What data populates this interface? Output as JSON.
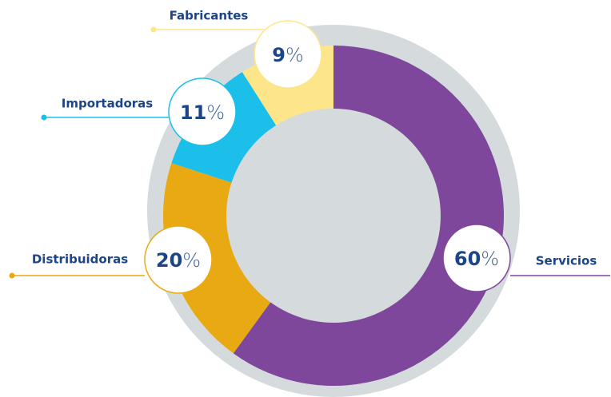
{
  "chart_data": {
    "type": "pie",
    "categories": [
      "Servicios",
      "Distribuidoras",
      "Importadoras",
      "Fabricantes"
    ],
    "values": [
      60,
      20,
      11,
      9
    ],
    "value_labels": [
      "60%",
      "20%",
      "11%",
      "9%"
    ],
    "colors": [
      "#7e479b",
      "#e9a913",
      "#1bbfe9",
      "#fde68a"
    ]
  }
}
